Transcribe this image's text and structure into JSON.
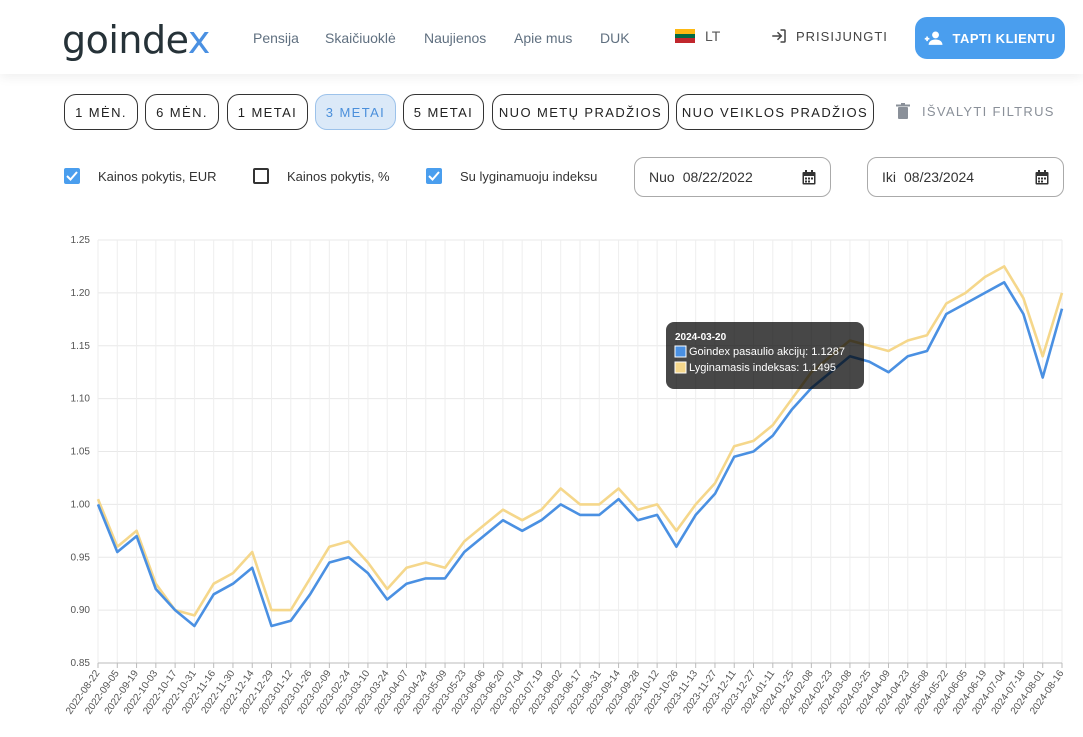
{
  "header": {
    "logo_main": "goinde",
    "logo_accent": "x",
    "nav": [
      "Pensija",
      "Skaičiuoklė",
      "Naujienos",
      "Apie mus",
      "DUK"
    ],
    "lang": "LT",
    "login": "PRISIJUNGTI",
    "cta": "TAPTI KLIENTU",
    "flag_colors": [
      "#fdb913",
      "#006a44",
      "#c1272d"
    ]
  },
  "filters": {
    "periods": [
      {
        "label": "1 MĖN.",
        "active": false
      },
      {
        "label": "6 MĖN.",
        "active": false
      },
      {
        "label": "1 METAI",
        "active": false
      },
      {
        "label": "3 METAI",
        "active": true
      },
      {
        "label": "5 METAI",
        "active": false
      },
      {
        "label": "NUO METŲ PRADŽIOS",
        "active": false
      },
      {
        "label": "NUO VEIKLOS PRADŽIOS",
        "active": false
      }
    ],
    "clear": "IŠVALYTI FILTRUS",
    "checks": [
      {
        "label": "Kainos pokytis, EUR",
        "checked": true
      },
      {
        "label": "Kainos pokytis, %",
        "checked": false
      },
      {
        "label": "Su lyginamuoju indeksu",
        "checked": true
      }
    ],
    "from_label": "Nuo",
    "from_value": "08/22/2022",
    "to_label": "Iki",
    "to_value": "08/23/2024"
  },
  "chart_data": {
    "type": "line",
    "ylim": [
      0.85,
      1.25
    ],
    "yticks": [
      "1.25",
      "1.20",
      "1.15",
      "1.10",
      "1.05",
      "1.00",
      "0.95",
      "0.90",
      "0.85"
    ],
    "xticks": [
      "2022-08-22",
      "2022-09-05",
      "2022-09-19",
      "2022-10-03",
      "2022-10-17",
      "2022-10-31",
      "2022-11-16",
      "2022-11-30",
      "2022-12-14",
      "2022-12-29",
      "2023-01-12",
      "2023-01-26",
      "2023-02-09",
      "2023-02-24",
      "2023-03-10",
      "2023-03-24",
      "2023-04-07",
      "2023-04-24",
      "2023-05-09",
      "2023-05-23",
      "2023-06-06",
      "2023-06-20",
      "2023-07-04",
      "2023-07-19",
      "2023-08-02",
      "2023-08-17",
      "2023-08-31",
      "2023-09-14",
      "2023-09-28",
      "2023-10-12",
      "2023-10-26",
      "2023-11-13",
      "2023-11-27",
      "2023-12-11",
      "2023-12-27",
      "2024-01-11",
      "2024-01-25",
      "2024-02-08",
      "2024-02-23",
      "2024-03-08",
      "2024-03-25",
      "2024-04-09",
      "2024-04-23",
      "2024-05-08",
      "2024-05-22",
      "2024-06-05",
      "2024-06-19",
      "2024-07-04",
      "2024-07-18",
      "2024-08-01",
      "2024-08-16"
    ],
    "series": [
      {
        "name": "Goindex pasaulio akcijų",
        "color": "#4a90e2",
        "values": [
          1.0,
          0.955,
          0.97,
          0.92,
          0.9,
          0.885,
          0.915,
          0.925,
          0.94,
          0.885,
          0.89,
          0.915,
          0.945,
          0.95,
          0.935,
          0.91,
          0.925,
          0.93,
          0.93,
          0.955,
          0.97,
          0.985,
          0.975,
          0.985,
          1.0,
          0.99,
          0.99,
          1.005,
          0.985,
          0.99,
          0.96,
          0.99,
          1.01,
          1.045,
          1.05,
          1.065,
          1.09,
          1.11,
          1.125,
          1.14,
          1.135,
          1.125,
          1.14,
          1.145,
          1.18,
          1.19,
          1.2,
          1.21,
          1.18,
          1.12,
          1.185
        ]
      },
      {
        "name": "Lyginamasis indeksas",
        "color": "#f5d78b",
        "values": [
          1.005,
          0.96,
          0.975,
          0.925,
          0.9,
          0.895,
          0.925,
          0.935,
          0.955,
          0.9,
          0.9,
          0.93,
          0.96,
          0.965,
          0.945,
          0.92,
          0.94,
          0.945,
          0.94,
          0.965,
          0.98,
          0.995,
          0.985,
          0.995,
          1.015,
          1.0,
          1.0,
          1.015,
          0.995,
          1.0,
          0.975,
          1.0,
          1.02,
          1.055,
          1.06,
          1.075,
          1.1,
          1.125,
          1.14,
          1.155,
          1.15,
          1.145,
          1.155,
          1.16,
          1.19,
          1.2,
          1.215,
          1.225,
          1.195,
          1.14,
          1.2
        ]
      }
    ],
    "tooltip": {
      "date": "2024-03-20",
      "items": [
        {
          "label": "Goindex pasaulio akcijų: 1.1287",
          "color": "#4a90e2"
        },
        {
          "label": "Lyginamasis indeksas: 1.1495",
          "color": "#f5d78b"
        }
      ]
    }
  }
}
